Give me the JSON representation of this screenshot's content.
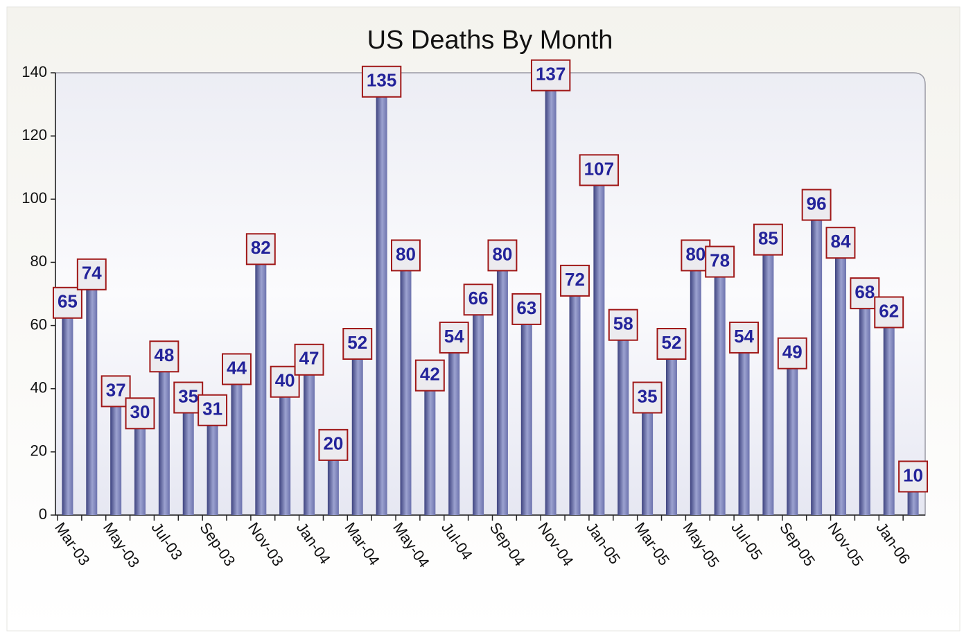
{
  "chart_data": {
    "type": "bar",
    "title": "US Deaths By Month",
    "categories": [
      "Mar-03",
      null,
      "May-03",
      null,
      "Jul-03",
      null,
      "Sep-03",
      null,
      "Nov-03",
      null,
      "Jan-04",
      null,
      "Mar-04",
      null,
      "May-04",
      null,
      "Jul-04",
      null,
      "Sep-04",
      null,
      "Nov-04",
      null,
      "Jan-05",
      null,
      "Mar-05",
      null,
      "May-05",
      null,
      "Jul-05",
      null,
      "Sep-05",
      null,
      "Nov-05",
      null,
      "Jan-06",
      null
    ],
    "values": [
      65,
      74,
      37,
      30,
      48,
      35,
      31,
      44,
      82,
      40,
      47,
      20,
      52,
      135,
      80,
      42,
      54,
      66,
      80,
      63,
      137,
      72,
      107,
      58,
      35,
      52,
      80,
      78,
      54,
      85,
      49,
      96,
      84,
      68,
      62,
      10
    ],
    "color": "#6b72b0",
    "ylim": [
      0,
      140
    ],
    "yticks": [
      0,
      20,
      40,
      60,
      80,
      100,
      120,
      140
    ],
    "grid": false
  }
}
